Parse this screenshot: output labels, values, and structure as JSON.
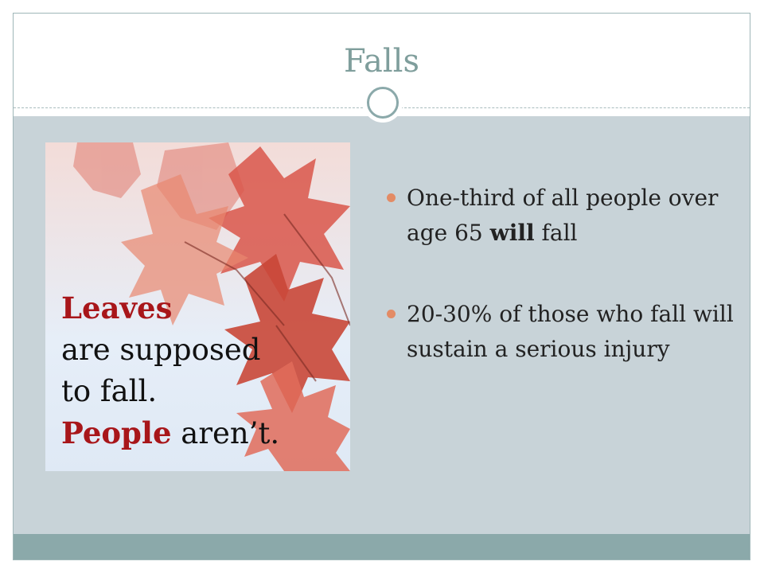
{
  "slide": {
    "title": "Falls",
    "accent_color": "#8ba9aa",
    "title_color": "#7f9e9c",
    "body_bg": "#c8d3d8"
  },
  "poster": {
    "line1_bold": "Leaves",
    "line2": "are supposed",
    "line3": "to fall.",
    "line4_bold": "People",
    "line4_rest": " aren’t.",
    "highlight_color": "#a8161a"
  },
  "bullets": [
    {
      "before": "One-third of all people over age 65 ",
      "bold": "will",
      "after": " fall"
    },
    {
      "text": "20-30% of those who fall will sustain a serious injury"
    }
  ]
}
